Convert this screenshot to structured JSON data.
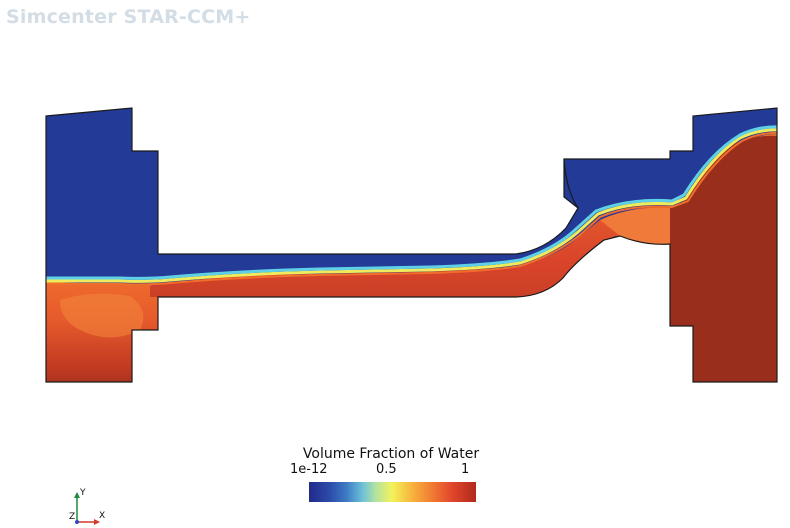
{
  "app": {
    "title": "Simcenter STAR-CCM+"
  },
  "scene": {
    "description_icon": "volume-fraction-contour",
    "colors": {
      "air": "#233a96",
      "water": "#9c2f1c",
      "interface_cyan": "#5fd0e6",
      "interface_yellow": "#f1ea5a",
      "interface_orange": "#f06d2c",
      "outline": "#1a1a1a"
    }
  },
  "legend": {
    "title": "Volume Fraction of Water",
    "tick_min": "1e-12",
    "tick_mid": "0.5",
    "tick_max": "1"
  },
  "triad": {
    "y_label": "Y",
    "z_label": "Z",
    "x_label": "X"
  }
}
